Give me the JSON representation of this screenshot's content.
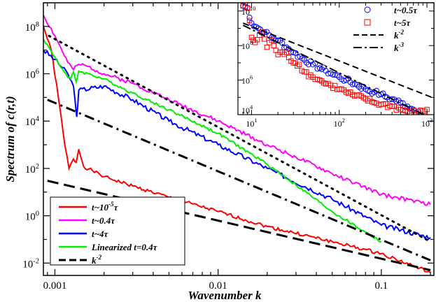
{
  "chart_data": [
    {
      "type": "line",
      "xlabel": "Wavenumber k",
      "ylabel": "Spectrum of c(r,t)",
      "xscale": "log",
      "yscale": "log",
      "xlim": [
        0.00085,
        0.21
      ],
      "ylim": [
        0.003,
        1000000000
      ],
      "grid": false,
      "legend_position": "bottom-left",
      "x_ticks": [
        {
          "v": 0.001,
          "label": "0.001"
        },
        {
          "v": 0.01,
          "label": "0.01"
        },
        {
          "v": 0.1,
          "label": "0.1"
        }
      ],
      "y_ticks": [
        {
          "v": 0.01,
          "base": "10",
          "exp": "-2"
        },
        {
          "v": 1,
          "base": "10",
          "exp": "0"
        },
        {
          "v": 100,
          "base": "10",
          "exp": "2"
        },
        {
          "v": 10000,
          "base": "10",
          "exp": "4"
        },
        {
          "v": 1000000,
          "base": "10",
          "exp": "6"
        },
        {
          "v": 100000000,
          "base": "10",
          "exp": "8"
        }
      ],
      "series": [
        {
          "name": "t~10^-5 τ",
          "legend": {
            "pre": "t~10",
            "sup": "-5",
            "post": "τ"
          },
          "color": "#ff0000",
          "dash": "none",
          "noise": 0.07,
          "seed": 1,
          "points": [
            [
              0.00085,
              100000000
            ],
            [
              0.00095,
              10000000
            ],
            [
              0.00105,
              100000
            ],
            [
              0.00115,
              1000
            ],
            [
              0.00122,
              100
            ],
            [
              0.0013,
              250
            ],
            [
              0.00135,
              180
            ],
            [
              0.0014,
              650
            ],
            [
              0.0015,
              120
            ],
            [
              0.0017,
              80
            ],
            [
              0.002,
              45
            ],
            [
              0.003,
              18
            ],
            [
              0.005,
              6
            ],
            [
              0.01,
              1.5
            ],
            [
              0.02,
              0.35
            ],
            [
              0.05,
              0.08
            ],
            [
              0.1,
              0.025
            ],
            [
              0.2,
              0.004
            ]
          ]
        },
        {
          "name": "t~0.4τ",
          "legend": {
            "pre": "t~0.4",
            "sup": "",
            "post": "τ"
          },
          "color": "#ff00ff",
          "dash": "none",
          "noise": 0.08,
          "seed": 2,
          "points": [
            [
              0.00085,
              300000000
            ],
            [
              0.001,
              40000000
            ],
            [
              0.0012,
              3000000
            ],
            [
              0.0013,
              1500000
            ],
            [
              0.0014,
              2500000
            ],
            [
              0.0016,
              2000000
            ],
            [
              0.002,
              1000000
            ],
            [
              0.003,
              400000
            ],
            [
              0.005,
              80000
            ],
            [
              0.01,
              10000
            ],
            [
              0.02,
              1000
            ],
            [
              0.03,
              300
            ],
            [
              0.05,
              60
            ],
            [
              0.1,
              8
            ],
            [
              0.2,
              3
            ]
          ]
        },
        {
          "name": "t~4τ",
          "legend": {
            "pre": "t~4",
            "sup": "",
            "post": "τ"
          },
          "color": "#0000ff",
          "dash": "none",
          "noise": 0.1,
          "seed": 3,
          "points": [
            [
              0.00085,
              10000000
            ],
            [
              0.001,
              4000000
            ],
            [
              0.0012,
              1000000
            ],
            [
              0.0013,
              300000
            ],
            [
              0.00136,
              15000
            ],
            [
              0.0014,
              200000
            ],
            [
              0.002,
              300000
            ],
            [
              0.003,
              80000
            ],
            [
              0.005,
              10000
            ],
            [
              0.01,
              1000
            ],
            [
              0.02,
              100
            ],
            [
              0.05,
              5
            ],
            [
              0.1,
              0.4
            ],
            [
              0.2,
              0.12
            ]
          ]
        },
        {
          "name": "Linearized t=0.4τ",
          "legend": {
            "pre": "Linearized t=0.4",
            "sup": "",
            "post": "τ"
          },
          "color": "#00ee00",
          "dash": "none",
          "noise": 0.06,
          "seed": 4,
          "points": [
            [
              0.00085,
              30000000
            ],
            [
              0.001,
              5000000
            ],
            [
              0.0012,
              700000
            ],
            [
              0.00125,
              600000
            ],
            [
              0.0013,
              1200000
            ],
            [
              0.00135,
              450000
            ],
            [
              0.0014,
              1300000
            ],
            [
              0.0016,
              1000000
            ],
            [
              0.002,
              600000
            ],
            [
              0.003,
              150000
            ],
            [
              0.005,
              30000
            ],
            [
              0.01,
              3000
            ],
            [
              0.02,
              150
            ],
            [
              0.03,
              20
            ],
            [
              0.05,
              1.5
            ],
            [
              0.08,
              0.2
            ],
            [
              0.1,
              0.08
            ]
          ]
        },
        {
          "name": "k^-2",
          "legend": {
            "pre": "k",
            "sup": "-2",
            "post": ""
          },
          "color": "#000000",
          "dash": "16,8",
          "noise": 0,
          "seed": 0,
          "points": [
            [
              0.0009,
              30
            ],
            [
              0.2,
              0.005
            ]
          ]
        },
        {
          "name": "dotted guide",
          "color": "#000000",
          "dash": "2,7",
          "noise": 0,
          "seed": 0,
          "points": [
            [
              0.00092,
              40000000
            ],
            [
              0.2,
              0.08
            ]
          ]
        },
        {
          "name": "dash-dot guide",
          "color": "#000000",
          "dash": "14,6,3,6",
          "noise": 0,
          "seed": 0,
          "points": [
            [
              0.0009,
              80000
            ],
            [
              0.2,
              0.013
            ]
          ]
        }
      ]
    },
    {
      "type": "scatter",
      "xscale": "log",
      "yscale": "log",
      "xlim": [
        7,
        1200
      ],
      "ylim": [
        10000,
        30000000000
      ],
      "grid": false,
      "legend_position": "top-right",
      "x_ticks": [
        {
          "v": 10,
          "base": "10",
          "exp": "1"
        },
        {
          "v": 100,
          "base": "10",
          "exp": "2"
        },
        {
          "v": 1000,
          "base": "10",
          "exp": "3"
        }
      ],
      "y_ticks": [
        {
          "v": 10000,
          "base": "10",
          "exp": "4"
        },
        {
          "v": 1000000,
          "base": "10",
          "exp": "6"
        },
        {
          "v": 100000000,
          "base": "10",
          "exp": "8"
        },
        {
          "v": 10000000000,
          "base": "10",
          "exp": "10"
        }
      ],
      "series": [
        {
          "name": "t~0.5τ",
          "legend": {
            "pre": "t~0.5",
            "sup": "",
            "post": "τ"
          },
          "color": "#0000ff",
          "marker": "circle",
          "points": [
            [
              8,
              20000000000
            ],
            [
              9,
              15000000000
            ],
            [
              10,
              2000000000
            ],
            [
              12,
              1000000000
            ],
            [
              14,
              600000000
            ],
            [
              17,
              300000000
            ],
            [
              20,
              200000000
            ],
            [
              25,
              80000000
            ],
            [
              30,
              40000000
            ],
            [
              40,
              15000000
            ],
            [
              50,
              8000000
            ],
            [
              60,
              5000000
            ],
            [
              70,
              3500000
            ],
            [
              80,
              2500000
            ],
            [
              100,
              1500000
            ],
            [
              120,
              1000000
            ],
            [
              150,
              600000
            ],
            [
              200,
              300000
            ],
            [
              250,
              200000
            ],
            [
              300,
              150000
            ],
            [
              350,
              100000
            ],
            [
              400,
              80000
            ],
            [
              500,
              50000
            ],
            [
              600,
              30000
            ],
            [
              700,
              20000
            ],
            [
              800,
              15000
            ]
          ]
        },
        {
          "name": "t~5τ",
          "legend": {
            "pre": "t~5",
            "sup": "",
            "post": "τ"
          },
          "color": "#ff0000",
          "marker": "square",
          "points": [
            [
              8,
              20000000000
            ],
            [
              9,
              15000000000
            ],
            [
              10,
              300000000
            ],
            [
              11,
              150000000
            ],
            [
              13,
              600000000
            ],
            [
              15,
              80000000
            ],
            [
              17,
              200000000
            ],
            [
              20,
              30000000
            ],
            [
              25,
              40000000
            ],
            [
              30,
              10000000
            ],
            [
              35,
              8000000
            ],
            [
              40,
              3000000
            ],
            [
              50,
              1500000
            ],
            [
              60,
              1000000
            ],
            [
              70,
              600000
            ],
            [
              80,
              500000
            ],
            [
              100,
              300000
            ],
            [
              120,
              200000
            ],
            [
              150,
              120000
            ],
            [
              200,
              80000
            ],
            [
              250,
              50000
            ],
            [
              300,
              40000
            ],
            [
              400,
              30000
            ],
            [
              500,
              20000
            ],
            [
              600,
              15000
            ],
            [
              800,
              12000
            ],
            [
              1000,
              20000
            ]
          ]
        },
        {
          "name": "k^-2",
          "legend": {
            "pre": "k",
            "sup": "-2",
            "post": ""
          },
          "color": "#000000",
          "dash": "9,5",
          "points": [
            [
              8,
              2000000000
            ],
            [
              1200,
              90000
            ]
          ]
        },
        {
          "name": "k^-3",
          "legend": {
            "pre": "k",
            "sup": "-3",
            "post": ""
          },
          "color": "#000000",
          "dash": "12,4,3,4",
          "points": [
            [
              8,
              1500000000
            ],
            [
              1000,
              8000
            ]
          ]
        }
      ]
    }
  ]
}
